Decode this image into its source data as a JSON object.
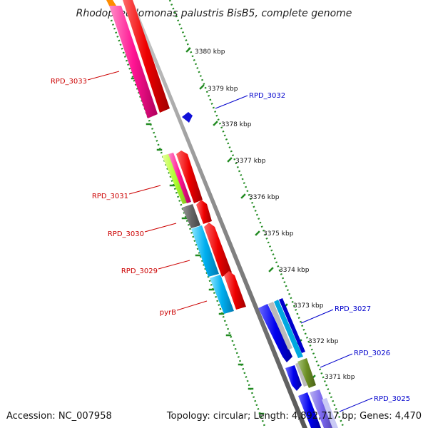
{
  "header": {
    "title": "Rhodopseudomonas palustris BisB5, complete genome"
  },
  "footer": {
    "accession": "Accession: NC_007958",
    "summary": "Topology: circular; Length: 4,892,717 bp; Genes: 4,470"
  },
  "ruler_ticks": [
    "3380 kbp",
    "3379 kbp",
    "3378 kbp",
    "3377 kbp",
    "3376 kbp",
    "3375 kbp",
    "3374 kbp",
    "3373 kbp",
    "3372 kbp",
    "3371 kbp"
  ],
  "gene_labels": {
    "reverse": [
      "RPD_3033",
      "RPD_3031",
      "RPD_3030",
      "RPD_3029",
      "pyrB"
    ],
    "forward": [
      "RPD_3032",
      "RPD_3027",
      "RPD_3026",
      "RPD_3025"
    ]
  },
  "colors": {
    "reverse_label": "#cc0000",
    "forward_label": "#0000cc",
    "backbone": "#888888",
    "tick_dots": "#228b22"
  }
}
